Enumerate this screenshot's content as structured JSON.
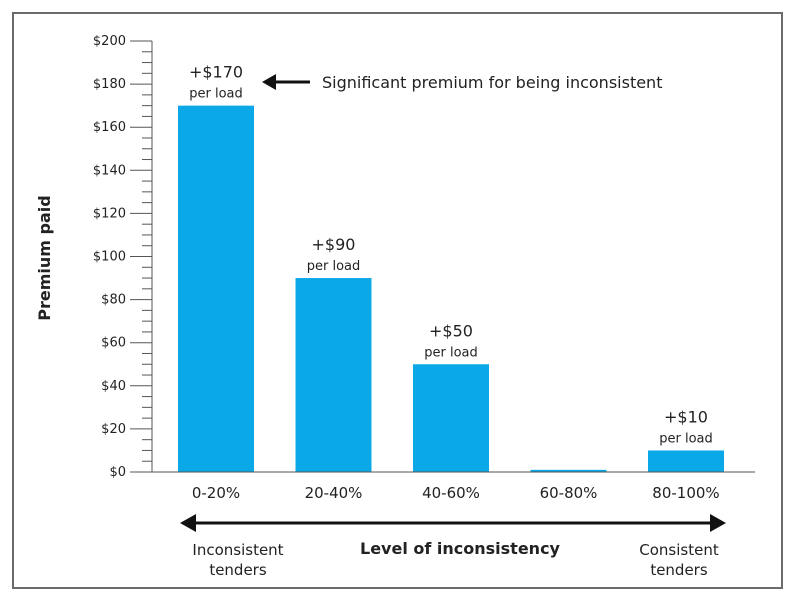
{
  "chart_data": {
    "type": "bar",
    "categories": [
      "0-20%",
      "20-40%",
      "40-60%",
      "60-80%",
      "80-100%"
    ],
    "values": [
      170,
      90,
      50,
      1,
      10
    ],
    "bar_labels": [
      "+$170",
      "+$90",
      "+$50",
      "",
      "+$10"
    ],
    "bar_unit_labels": [
      "per load",
      "per load",
      "per load",
      "",
      "per load"
    ],
    "ylabel": "Premium paid",
    "xlabel": "Level of inconsistency",
    "ylim": [
      0,
      200
    ],
    "yticks": [
      0,
      20,
      40,
      60,
      80,
      100,
      120,
      140,
      160,
      180,
      200
    ],
    "ytick_labels": [
      "$0",
      "$20",
      "$40",
      "$60",
      "$80",
      "$100",
      "$120",
      "$140",
      "$160",
      "$180",
      "$200"
    ],
    "annotation": "Significant premium for being inconsistent",
    "left_end_label": [
      "Inconsistent",
      "tenders"
    ],
    "right_end_label": [
      "Consistent",
      "tenders"
    ],
    "bar_color": "#0aa8e6",
    "axis_color": "#555555",
    "frame_color": "#6b6b6b",
    "grid": false,
    "legend": "none"
  }
}
